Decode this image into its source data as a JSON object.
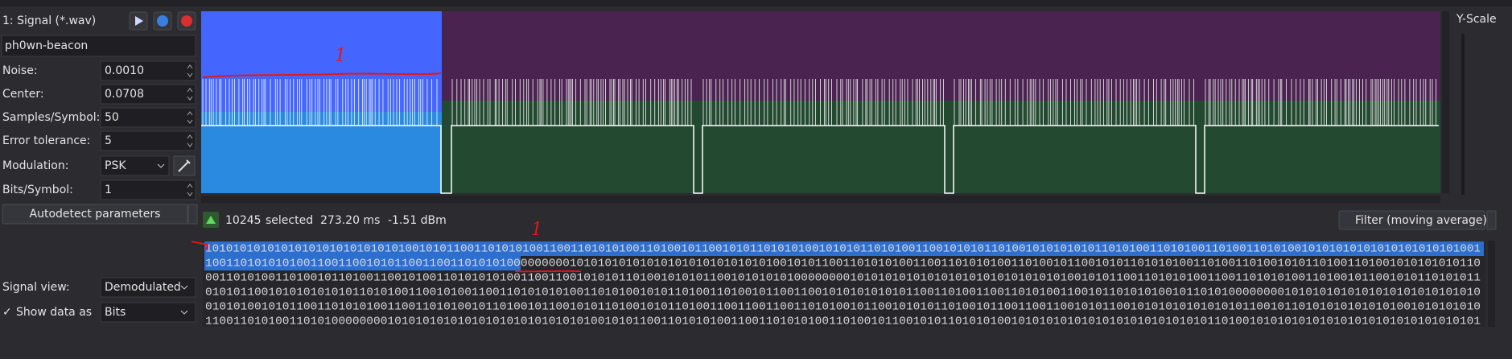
{
  "signal": {
    "title": "1: Signal (*.wav)",
    "name": "ph0wn-beacon",
    "params": [
      {
        "label": "Noise:",
        "value": "0.0010"
      },
      {
        "label": "Center:",
        "value": "0.0708"
      },
      {
        "label": "Samples/Symbol:",
        "value": "50"
      },
      {
        "label": "Error tolerance:",
        "value": "5"
      },
      {
        "label": "Modulation:",
        "value": "PSK"
      },
      {
        "label": "Bits/Symbol:",
        "value": "1"
      }
    ],
    "autodetect": "Autodetect parameters",
    "signal_view": {
      "label": "Signal view:",
      "value": "Demodulated"
    },
    "show_data": {
      "label": "Show data as",
      "value": "Bits"
    }
  },
  "y_scale": "Y-Scale",
  "status": {
    "selected_count": "10245",
    "selected_label": "selected",
    "duration": "273.20 ms",
    "power": "-1.51 dBm",
    "filter": "Filter (moving average)"
  },
  "bits": [
    "10101010101010101010101010101001010110011010101001100110101010011010010110010101101010100101010110101001100101010110100101010101011010100110101001101001101010010101010101010101010101001",
    "10011010101010011001100101011001100110101010000000001010101010101010101010101010100101011001101010100110011010101001101001011001010110101010011010011010010101101001101001010101010110",
    "00110101001101001011010011001010011010101010011001100101010110100101010110010101010100000000101010101010101010101010101010100101011001101010100110011010101001101001011001010110101011",
    "01010110010101010101011010100110010100110011010101010011010100101011010011010010110011001010101010101100110100110011010100110010110101010010110101000000001010101010101010101010101010",
    "01010100101011001101010100110011010100101101001011001010110100101011010011001100110011010100101100101010110100101100110011001010110010101010101010101100101101010101010101001010101010",
    "11001101010011010100000000101010101010101010101010101010010101100110101010011001101010100110100101100101011010101001010101010101010101010101010110100101010101010101010101010101010101"
  ],
  "annotations": [
    "1",
    "1"
  ]
}
